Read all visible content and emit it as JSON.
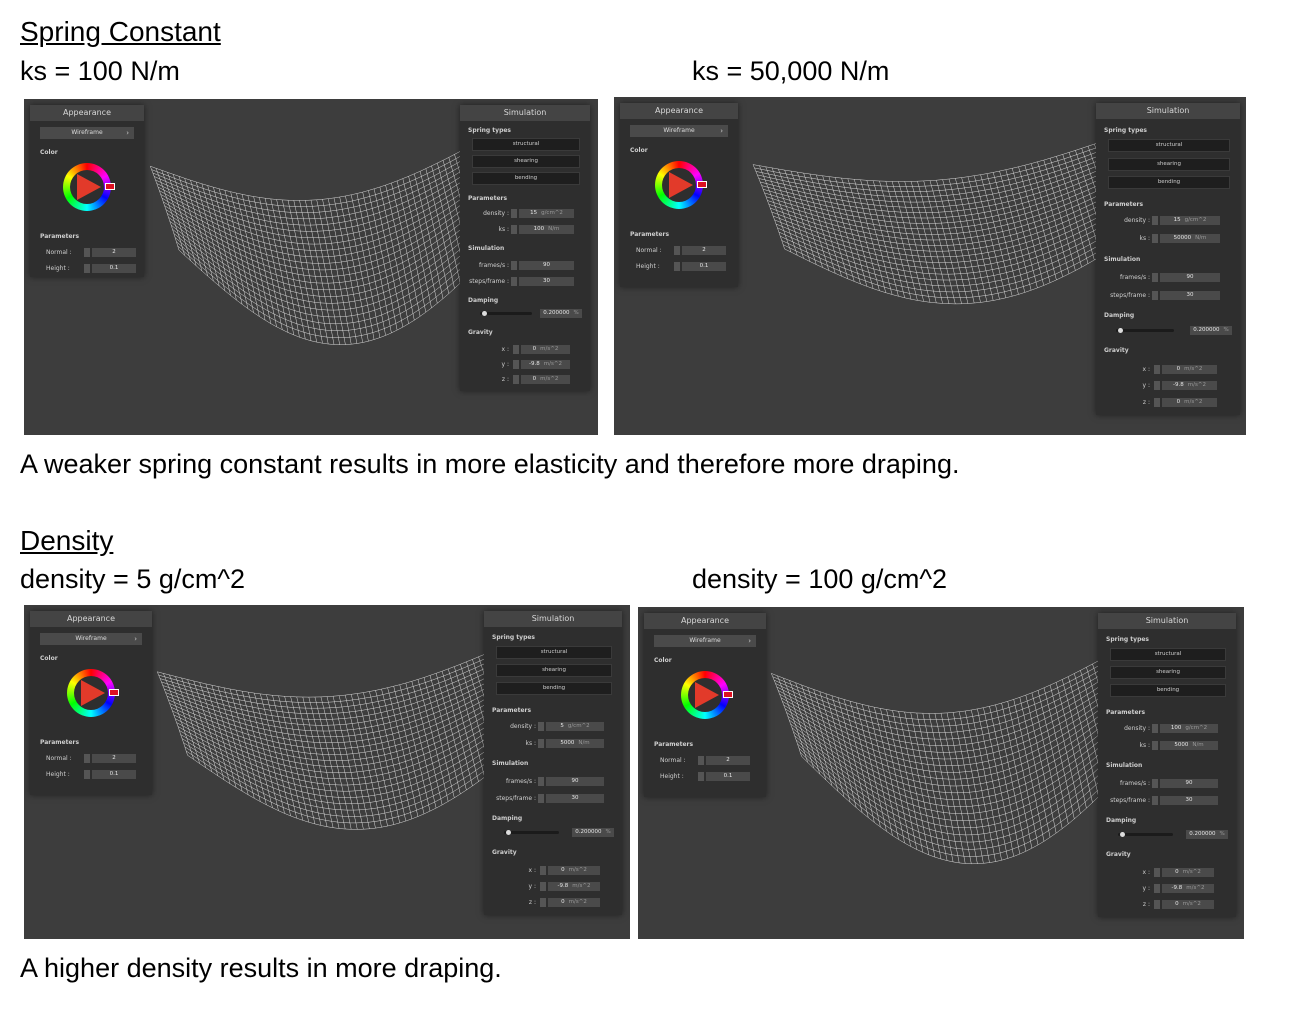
{
  "section1": {
    "heading": "Spring Constant",
    "left_label": "ks = 100 N/m",
    "right_label": "ks = 50,000 N/m",
    "caption": "A weaker spring constant results in more elasticity and therefore more draping."
  },
  "section2": {
    "heading": "Density",
    "left_label": "density = 5 g/cm^2",
    "right_label": "density = 100 g/cm^2",
    "caption": "A higher density results in more draping."
  },
  "gui": {
    "appearance_title": "Appearance",
    "wireframe": "Wireframe",
    "color_label": "Color",
    "parameters_label": "Parameters",
    "normal_label": "Normal :",
    "normal_value": "2",
    "height_label": "Height :",
    "height_value": "0.1",
    "simulation_title": "Simulation",
    "spring_types_label": "Spring types",
    "structural": "structural",
    "shearing": "shearing",
    "bending": "bending",
    "density_label": "density :",
    "ks_label": "ks :",
    "simulation_label": "Simulation",
    "fps_label": "frames/s :",
    "fps_value": "90",
    "spf_label": "steps/frame :",
    "spf_value": "30",
    "damping_label": "Damping",
    "damping_value": "0.200000",
    "damping_unit": "%",
    "gravity_label": "Gravity",
    "x_label": "x :",
    "y_label": "y :",
    "z_label": "z :",
    "gx": "0",
    "gy": "-9.8",
    "gz": "0",
    "g_unit": "m/s^2",
    "density_unit": "g/cm^2",
    "ks_unit": "N/m"
  },
  "shots": [
    {
      "density": "15",
      "ks": "100"
    },
    {
      "density": "15",
      "ks": "50000"
    },
    {
      "density": "5",
      "ks": "5000"
    },
    {
      "density": "100",
      "ks": "5000"
    }
  ]
}
